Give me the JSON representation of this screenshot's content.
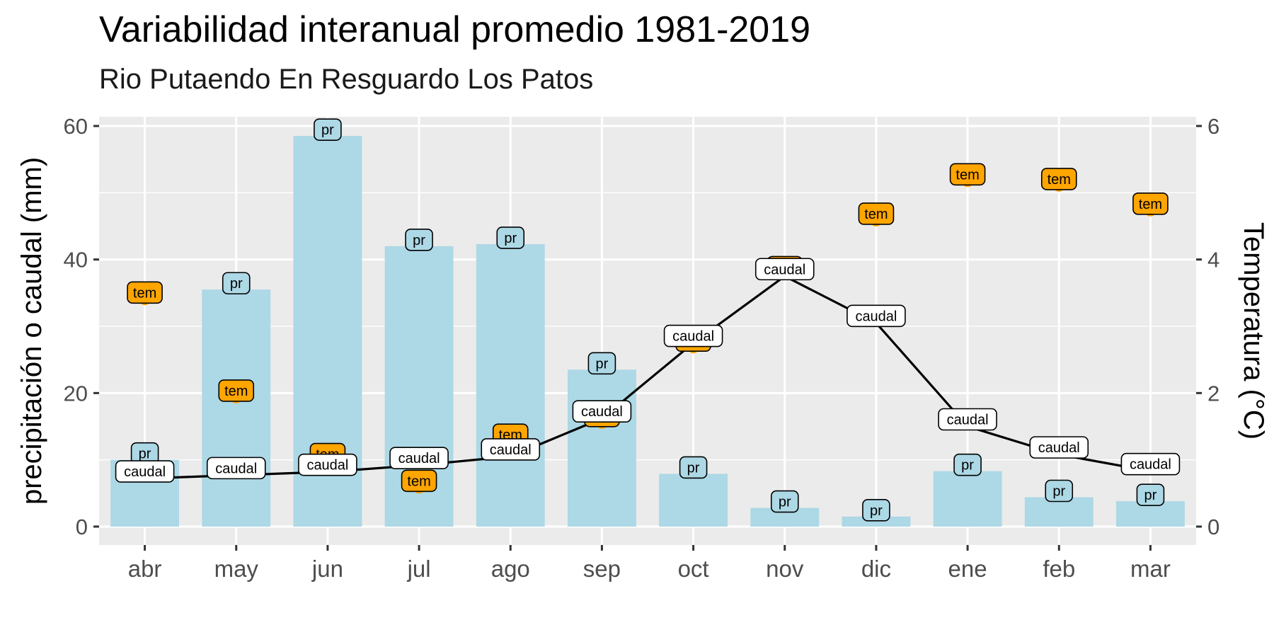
{
  "chart_data": {
    "type": "bar+line+scatter",
    "title": "Variabilidad interanual promedio 1981-2019",
    "subtitle": "Rio Putaendo En Resguardo Los Patos",
    "ylabel": "precipitación o caudal (mm)",
    "y2label": "Temperatura (°C)",
    "categories": [
      "abr",
      "may",
      "jun",
      "jul",
      "ago",
      "sep",
      "oct",
      "nov",
      "dic",
      "ene",
      "feb",
      "mar"
    ],
    "ylim": [
      0,
      60
    ],
    "y2lim": [
      0,
      6
    ],
    "yticks": [
      "0",
      "20",
      "40",
      "60"
    ],
    "y2ticks": [
      "0",
      "2",
      "4",
      "6"
    ],
    "grid": true,
    "colors": {
      "bar": "#add8e6",
      "temp": "#ffa500",
      "line": "#000000",
      "panel": "#ebebeb",
      "gridline": "#ffffff"
    },
    "series": [
      {
        "name": "pr",
        "type": "bar",
        "axis": "left",
        "values": [
          10.0,
          35.5,
          58.5,
          42.0,
          42.3,
          23.5,
          7.9,
          2.8,
          1.5,
          8.3,
          4.4,
          3.8
        ]
      },
      {
        "name": "caudal",
        "type": "line",
        "axis": "left",
        "values": [
          7.2,
          7.7,
          8.2,
          9.2,
          10.5,
          16.2,
          27.5,
          37.5,
          30.5,
          15.0,
          10.8,
          8.3
        ]
      },
      {
        "name": "tem",
        "type": "scatter",
        "axis": "right",
        "values": [
          3.4,
          1.93,
          0.98,
          0.58,
          1.27,
          1.55,
          2.68,
          3.78,
          4.58,
          5.17,
          5.1,
          4.73
        ]
      }
    ]
  }
}
